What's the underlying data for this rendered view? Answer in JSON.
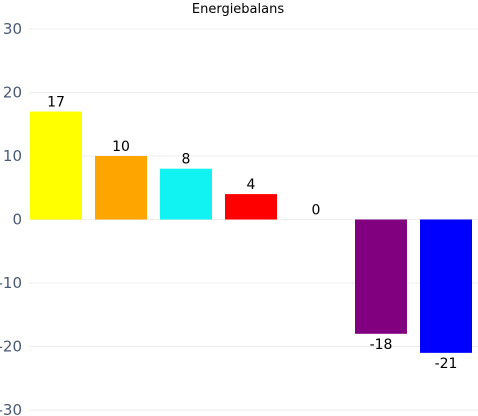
{
  "chart_data": {
    "type": "bar",
    "title": "Energiebalans",
    "categories": [
      "",
      "",
      "",
      "",
      "",
      "",
      ""
    ],
    "values": [
      17,
      10,
      8,
      4,
      0,
      -18,
      -21
    ],
    "colors": [
      "#ffff00",
      "#ffa500",
      "#11f2f2",
      "#ff0000",
      "#00b050",
      "#800080",
      "#0000ff"
    ],
    "data_labels": [
      "17",
      "10",
      "8",
      "4",
      "0",
      "-18",
      "-21"
    ],
    "ylim": [
      -30,
      30
    ],
    "yticks": [
      30,
      20,
      10,
      0,
      -10,
      -20,
      -30
    ],
    "ytick_labels": [
      "30",
      "20",
      "10",
      "0",
      "-10",
      "-20",
      "-30"
    ],
    "xlabel": "",
    "ylabel": "",
    "grid": true,
    "legend": "none"
  }
}
